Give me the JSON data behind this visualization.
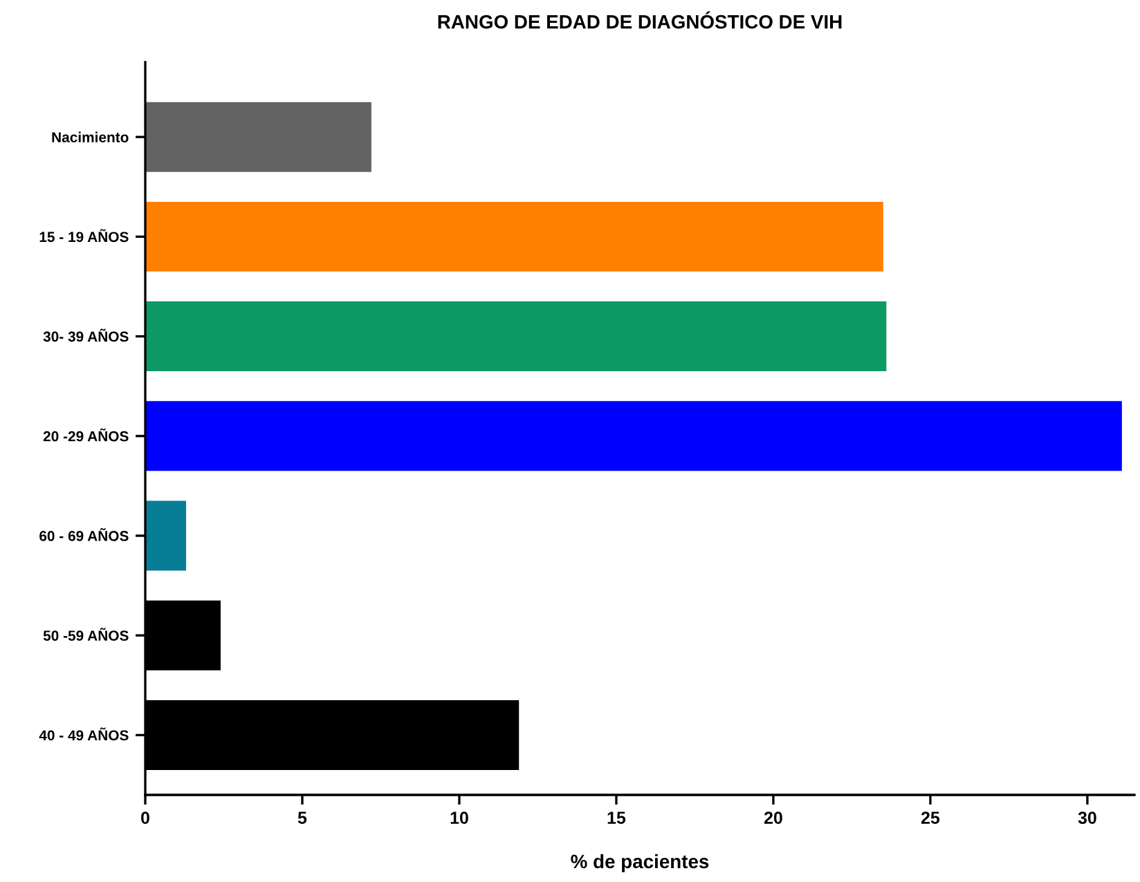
{
  "chart_data": {
    "type": "bar",
    "orientation": "horizontal",
    "title": "RANGO DE EDAD DE DIAGNÓSTICO DE VIH",
    "xlabel": "% de pacientes",
    "categories": [
      "Nacimiento",
      "15 - 19 AÑOS",
      "30- 39 AÑOS",
      "20 -29 AÑOS",
      "60 - 69 AÑOS",
      "50 -59 AÑOS",
      "40 - 49 AÑOS"
    ],
    "values": [
      7.2,
      23.5,
      23.6,
      31.1,
      1.3,
      2.4,
      11.9
    ],
    "colors": [
      "#636363",
      "#ff8000",
      "#0d9a65",
      "#0000ff",
      "#087d96",
      "#000000",
      "#000000"
    ],
    "xlim": [
      0,
      31.5
    ],
    "xticks": [
      0,
      5,
      10,
      15,
      20,
      25,
      30
    ],
    "grid": false,
    "legend": false
  }
}
